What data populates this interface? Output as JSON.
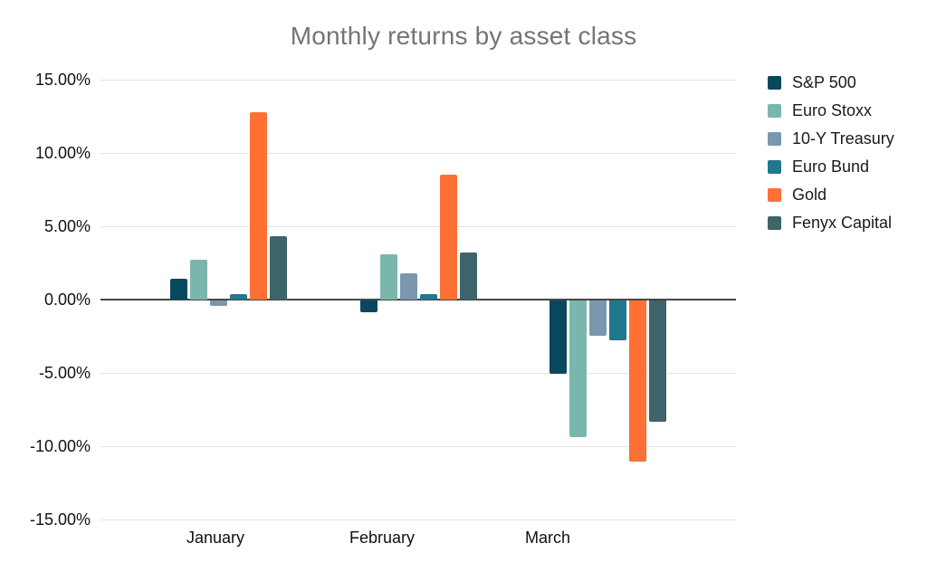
{
  "chart_data": {
    "type": "bar",
    "title": "Monthly returns by asset class",
    "title_color": "#757575",
    "categories": [
      "January",
      "February",
      "March"
    ],
    "series": [
      {
        "name": "S&P 500",
        "color": "#07485f",
        "values": [
          1.4,
          -0.8,
          -5.0
        ]
      },
      {
        "name": "Euro Stoxx",
        "color": "#7ab6ab",
        "values": [
          2.7,
          3.1,
          -9.3
        ]
      },
      {
        "name": "10-Y Treasury",
        "color": "#7b97b0",
        "values": [
          -0.4,
          1.8,
          -2.4
        ]
      },
      {
        "name": "Euro Bund",
        "color": "#20788e",
        "values": [
          0.4,
          0.4,
          -2.7
        ]
      },
      {
        "name": "Gold",
        "color": "#fe7033",
        "values": [
          12.8,
          8.5,
          -11.0
        ]
      },
      {
        "name": "Fenyx Capital",
        "color": "#3d6468",
        "values": [
          4.3,
          3.2,
          -8.3
        ]
      }
    ],
    "y_axis": {
      "min": -15,
      "max": 15,
      "ticks": [
        15,
        10,
        5,
        0,
        -5,
        -10,
        -15
      ],
      "tick_labels": [
        "15.00%",
        "10.00%",
        "5.00%",
        "0.00%",
        "-5.00%",
        "-10.00%",
        "-15.00%"
      ]
    },
    "grid": "horizontal-only",
    "legend_position": "right",
    "axis_line_color": "#474747",
    "gridline_color": "#e2e2e2"
  }
}
